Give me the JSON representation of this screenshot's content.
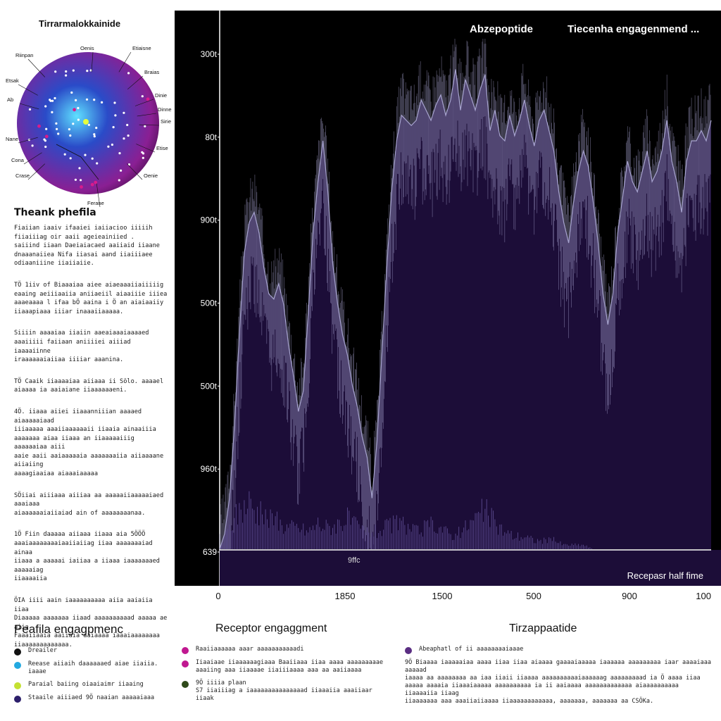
{
  "sphere_panel": {
    "title": "Tirrarmalokkainide",
    "labels": [
      "Riinpan",
      "Oenis",
      "Etiaisne",
      "Etsak",
      "Braias",
      "Ab",
      "Dinie",
      "Dinne",
      "Sirie",
      "Nane",
      "Etise",
      "Cona",
      "Crase",
      "Oenie",
      "Ferane"
    ],
    "colors": {
      "center": "#5fe0ff",
      "mid": "#2a4bc8",
      "edge": "#8a1f93",
      "rim": "#5a1460",
      "marker": "#d81b8c"
    }
  },
  "left_text": {
    "heading": "Theank phefila",
    "paragraphs": [
      "Fiaiian iaaiv ifaaiei iaiiacioo iiiiih\nfiiaiiiag oir aaii ageieainiied .\nsaiiind iiaan Daeiaiacaed aaiiaid iiaane\ndnaaanaiiea Nifa iiasai aand iiaiiiaee\nodiaaniiine iiaiiaiie.",
      "TÖ 1iiv of Biaaaiaa aiee aiaeaaaiiaiiiiig\neaaing aeiiiaaiia aniiaeiil aiaaiiie iiiea\naaaeaaaa l ifaa bÖ aaina i Ö an aiaiaaiiy\niiaaapiaaa iiiar inaaaiiaaaaa.",
      "Siiiin aaaaiaa iiaiin aaeaiaaaiaaaaed\naaaiiiii faiiaan aniiiiei aiiiad iaaaaiinne\niraaaaaaiaiiaa iiiiar aaanina.",
      "TÖ Caaik iiaaaaiaa aiiaaa ii Sölo. aaaael\naiaaaa ia aaiaiane iiaaaaaaeni.",
      "4Ö. iiaaa aiiei iiaaanniiian aaaaed aiaaaaaiaad\niiiaaaaa aaaiiaaaaaaii iiaaia ainaaiiia\naaaaaaa aiaa iiaaa an iiaaaaaiiig aaaaaaiaa aiii\naaie aaii aaiaaaaaia aaaaaaaiia aiiaaaane aiiaiing\naaaagiaaiaa aiaaaiaaaaa",
      "SÖiiai aiiiaaa aiiiaa aa aaaaaiiaaaaaiaed aaaiaaa\naiaaaaaaiaiiaiad ain of aaaaaaaanaa.",
      "1Ö Fiin daaaaa aiiaaa iiaaa aia 5ÖÖÖ\naaaiaaaaaaaaiaaiiaiiag iiaa aaaaaaaiad ainaa\niiaaa a aaaaai iaiiaa a iiaaa iaaaaaaaed aaaaaiag\niiaaaaiia",
      "ÖIA iiii aain iaaaaaaaaaa aiia aaiaiia iiaa\nDiaaaaa aaaaaaa iiaad aaaaaaaaaad aaaaa ae aiia\nFaaaiiaaia aaiiaia aaiaaaa iaaaiaaaaaaaa\niiaaaaaaaaaaaaa."
    ]
  },
  "chart_data": {
    "type": "area",
    "title": "",
    "header_labels": [
      "Abzepoptide",
      "Tiecenha engagenmend ..."
    ],
    "ytick_labels": [
      "300t",
      "80t",
      "900t",
      "500t",
      "500t",
      "960t",
      "639"
    ],
    "xtick_labels": [
      "0",
      "1850",
      "1500",
      "500",
      "900",
      "100"
    ],
    "xlabel": "Recepasr half fime",
    "annotation": "9ffc",
    "xlim": [
      0,
      100
    ],
    "ylim": [
      0,
      100
    ],
    "series": [
      {
        "type": "area",
        "x": [
          0,
          1,
          2,
          3,
          4,
          5,
          6,
          7,
          8,
          9,
          10,
          11,
          12,
          13,
          14,
          15,
          16,
          17,
          18,
          19,
          20,
          21,
          22,
          23,
          24,
          25,
          26,
          27,
          28,
          29,
          30,
          31,
          32,
          33,
          34,
          35,
          36,
          37,
          38,
          39,
          40,
          41,
          42,
          43,
          44,
          45,
          46,
          47,
          48,
          49,
          50,
          51,
          52,
          53,
          54,
          55,
          56,
          57,
          58,
          59,
          60,
          61,
          62,
          63,
          64,
          65,
          66,
          67,
          68,
          69,
          70,
          71,
          72,
          73,
          74,
          75,
          76,
          77,
          78,
          79,
          80,
          81,
          82,
          83,
          84,
          85,
          86,
          87,
          88,
          89,
          90,
          91,
          92,
          93,
          94,
          95,
          96,
          97,
          98,
          99,
          100
        ],
        "y": [
          0,
          3,
          10,
          24,
          42,
          58,
          64,
          66,
          62,
          55,
          50,
          49,
          52,
          48,
          40,
          34,
          27,
          31,
          46,
          62,
          72,
          80,
          70,
          56,
          48,
          42,
          38,
          32,
          28,
          22,
          18,
          10,
          21,
          38,
          55,
          70,
          80,
          85,
          84,
          83,
          84,
          88,
          86,
          84,
          87,
          89,
          85,
          88,
          94,
          86,
          92,
          89,
          86,
          90,
          93,
          82,
          86,
          81,
          80,
          85,
          81,
          84,
          88,
          83,
          79,
          84,
          86,
          82,
          78,
          70,
          64,
          60,
          68,
          74,
          78,
          75,
          68,
          60,
          50,
          44,
          50,
          62,
          69,
          76,
          72,
          70,
          74,
          78,
          72,
          74,
          78,
          84,
          76,
          72,
          66,
          76,
          80,
          80,
          82,
          80,
          84
        ]
      },
      {
        "type": "spikes",
        "x": [
          0,
          2,
          4,
          6,
          8,
          10,
          12,
          14,
          16,
          18,
          20,
          22,
          24,
          26,
          28,
          30,
          32,
          34,
          36,
          38,
          40,
          42,
          44,
          46,
          48,
          50,
          52,
          54,
          56,
          58,
          60,
          62,
          64,
          66,
          68,
          70,
          72,
          74,
          76,
          78,
          80,
          82,
          84,
          86,
          88,
          90,
          92,
          94,
          96,
          98,
          100
        ],
        "y": [
          0,
          5,
          9,
          11,
          8,
          7,
          6,
          5,
          5,
          4,
          6,
          5,
          6,
          7,
          5,
          4,
          4,
          5,
          6,
          5,
          4,
          5,
          6,
          4,
          3,
          5,
          7,
          9,
          6,
          4,
          3,
          3,
          2,
          2,
          2,
          1,
          1,
          1,
          0,
          0,
          0,
          0,
          0,
          0,
          0,
          0,
          0,
          0,
          0,
          0,
          0
        ]
      }
    ],
    "colors": {
      "plot_bg": "#000000",
      "area": "#1c0d38",
      "line": "#a7a3cf",
      "spikes": "#5b4a8f",
      "axis": "#ffffff",
      "tick_text": "#ffffff"
    }
  },
  "legend": {
    "left": {
      "title": "Peafila engagpmenc",
      "items": [
        {
          "text": "Dreailer",
          "color": "#111111"
        },
        {
          "text": "Reease aiiaih daaaaaaed aiae iiaiia.\niaaae",
          "color": "#23a9e0"
        },
        {
          "text": "Paraial baiing oiaaiaimr iiaaing",
          "color": "#c4e132"
        },
        {
          "text": "Staaile aiiiaed 9Ö naaian aaaaaiaaa",
          "color": "#2c1f6b"
        }
      ]
    },
    "middle": {
      "title": "Receptor engaggment",
      "items": [
        {
          "text": "Raaiiaaaaaa aaar aaaaaaaaaaadi",
          "color": "#c01890"
        },
        {
          "text": "Iiaaiaae iiaaaaaagiaaa Baaiiaaa iiaa aaaa aaaaaaaaae\naaaiing aaa iiaaaae iiaiiiaaaa aaa aa aaiiaaaa",
          "color": "#c01890"
        },
        {
          "text": "9Ö iiiia plaan\nS7 iiaiiiag a iaaaaaaaaaaaaaaad iiaaaiia aaaiiaar iiaak",
          "color": "#2f4a1a"
        }
      ]
    },
    "right": {
      "title": "Tirzappaatide",
      "items": [
        {
          "text": "Abeaphatl of ii aaaaaaaaiaaae",
          "color": "#5a2d82"
        }
      ],
      "description": "9Ö Biaaaa iaaaaaiaa aaaa iiaa iiaa aiaaaa gaaaaiaaaaa iaaaaaa aaaaaaaaa iaar aaaaiaaa aaaaad\niaaaa aa aaaaaaaa aa iaa iiaii iiaaaa aaaaaaaaaaiaaaaaag aaaaaaaaad ia Ö aaaa iiaa\naaaaa aaaaia iiaaaiaaaaa aaaaaaaaaa ia ii aaiaaaa aaaaaaaaaaaaa aiaaaaaaaaaa iiaaaaiia iiaag\niiaaaaaaa aaa aaaiiaiiaaaa iiaaaaaaaaaaaa, aaaaaaa, aaaaaaa aa CSÖKa."
    }
  }
}
